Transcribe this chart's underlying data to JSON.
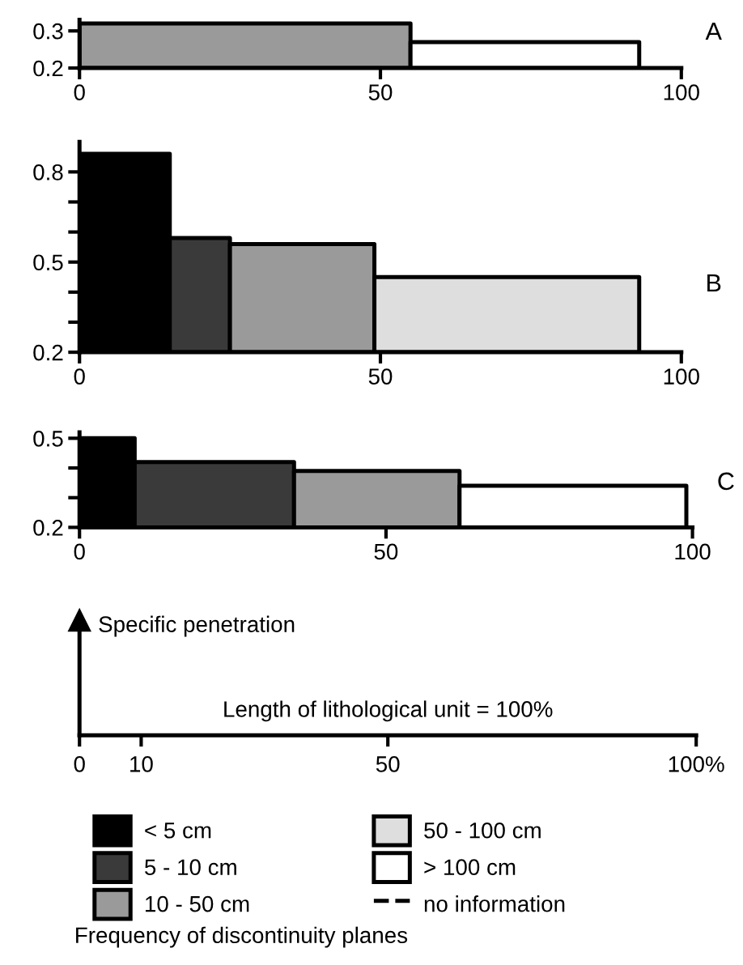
{
  "chart_data": [
    {
      "type": "area",
      "title": "A",
      "xlim": [
        0,
        100
      ],
      "xticks": [
        0,
        50,
        100
      ],
      "ylim": [
        0.2,
        0.33
      ],
      "yticks": [
        0.2,
        0.3
      ],
      "grid": false,
      "legend": false,
      "series": [
        {
          "color": "#9a9a9a",
          "x": [
            0,
            55
          ],
          "values": [
            0.32,
            0.32
          ]
        },
        {
          "color": "#ffffff",
          "x": [
            55,
            93
          ],
          "values": [
            0.27,
            0.27
          ]
        }
      ]
    },
    {
      "type": "area",
      "title": "B",
      "xlim": [
        0,
        100
      ],
      "xticks": [
        0,
        50,
        100
      ],
      "ylim": [
        0.2,
        0.9
      ],
      "yticks": [
        {
          "value": 0.2,
          "label": "0.2"
        },
        {
          "value": 0.3,
          "label": null
        },
        {
          "value": 0.4,
          "label": null
        },
        {
          "value": 0.5,
          "label": "0.5"
        },
        {
          "value": 0.6,
          "label": null
        },
        {
          "value": 0.7,
          "label": null
        },
        {
          "value": 0.8,
          "label": "0.8"
        }
      ],
      "grid": false,
      "legend": false,
      "series": [
        {
          "color": "#000000",
          "x": [
            0,
            15
          ],
          "values": [
            0.86,
            0.86
          ]
        },
        {
          "color": "#3a3a3a",
          "x": [
            15,
            25
          ],
          "values": [
            0.58,
            0.58
          ]
        },
        {
          "color": "#9a9a9a",
          "x": [
            25,
            49
          ],
          "values": [
            0.56,
            0.56
          ]
        },
        {
          "color": "#dedede",
          "x": [
            49,
            93
          ],
          "values": [
            0.45,
            0.45
          ]
        }
      ]
    },
    {
      "type": "area",
      "title": "C",
      "xlim": [
        0,
        100
      ],
      "xticks": [
        0,
        50,
        100
      ],
      "ylim": [
        0.2,
        0.52
      ],
      "yticks": [
        {
          "value": 0.2,
          "label": "0.2"
        },
        {
          "value": 0.3,
          "label": null
        },
        {
          "value": 0.4,
          "label": null
        },
        {
          "value": 0.5,
          "label": "0.5"
        }
      ],
      "grid": false,
      "legend": false,
      "series": [
        {
          "color": "#000000",
          "x": [
            0,
            9
          ],
          "values": [
            0.5,
            0.5
          ]
        },
        {
          "color": "#3a3a3a",
          "x": [
            9,
            35
          ],
          "values": [
            0.42,
            0.42
          ]
        },
        {
          "color": "#9a9a9a",
          "x": [
            35,
            62
          ],
          "values": [
            0.39,
            0.39
          ]
        },
        {
          "color": "#ffffff",
          "x": [
            62,
            99
          ],
          "values": [
            0.34,
            0.34
          ]
        }
      ]
    },
    {
      "type": "other",
      "xlabel": "Length of lithological unit = 100%",
      "ylabel": "Specific penetration",
      "annotations": [
        "0",
        "10",
        "50",
        "100%"
      ],
      "legend": "bottom",
      "legend_title": "Frequency of discontinuity planes",
      "series": [
        {
          "name": "< 5 cm",
          "color": "#000000"
        },
        {
          "name": "5 - 10 cm",
          "color": "#3a3a3a"
        },
        {
          "name": "10 - 50 cm",
          "color": "#9a9a9a"
        },
        {
          "name": "50 - 100 cm",
          "color": "#dedede"
        },
        {
          "name": "> 100 cm",
          "color": "#ffffff"
        },
        {
          "name": "no information",
          "color": "#000000",
          "line_style": "dashed"
        }
      ]
    }
  ]
}
